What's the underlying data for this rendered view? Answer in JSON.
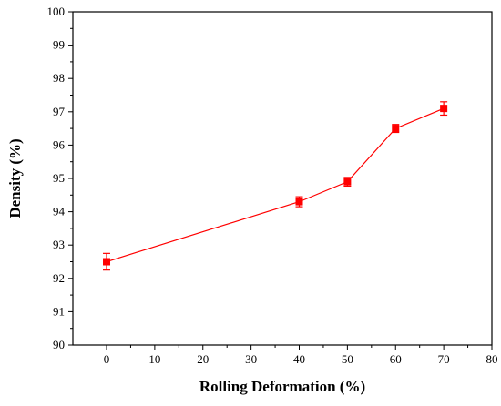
{
  "chart_data": {
    "type": "line",
    "xlabel": "Rolling Deformation (%)",
    "ylabel": "Density (%)",
    "xlim": [
      -7,
      80
    ],
    "ylim": [
      90,
      100
    ],
    "xticks": [
      "0",
      "10",
      "20",
      "30",
      "40",
      "50",
      "60",
      "70",
      "80"
    ],
    "yticks": [
      "90",
      "91",
      "92",
      "93",
      "94",
      "95",
      "96",
      "97",
      "98",
      "99",
      "100"
    ],
    "grid": false,
    "series": [
      {
        "x": [
          0,
          40,
          50,
          60,
          70
        ],
        "y": [
          92.5,
          94.3,
          94.9,
          96.5,
          97.1
        ],
        "error": [
          0.25,
          0.15,
          0.13,
          0.12,
          0.2
        ],
        "color": "#ff0000",
        "marker": "square"
      }
    ]
  }
}
